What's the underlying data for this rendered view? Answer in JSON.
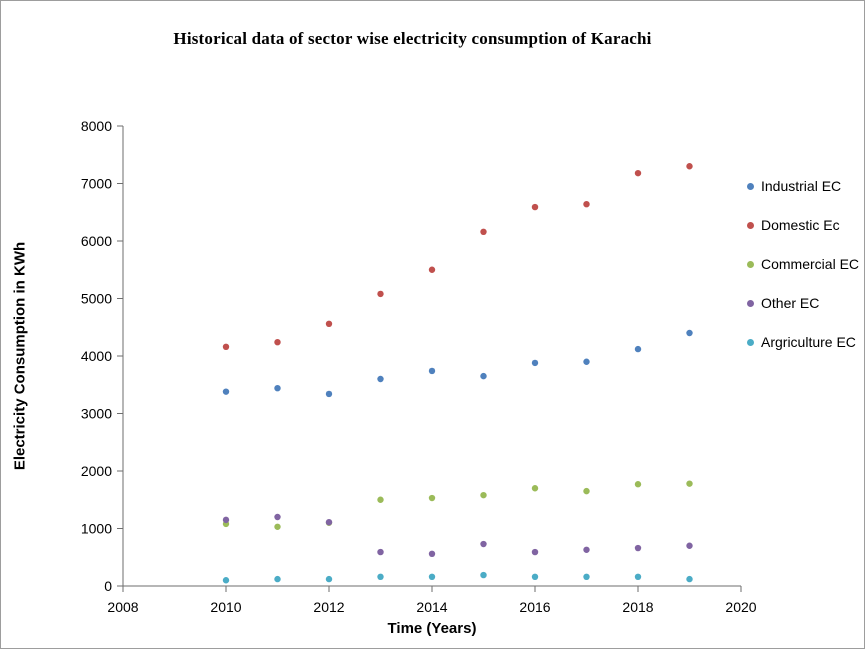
{
  "chart_data": {
    "type": "scatter",
    "title": "Historical data of sector wise electricity consumption of Karachi",
    "xlabel": "Time (Years)",
    "ylabel": "Electricity Consumption in KWh",
    "x": [
      2010,
      2011,
      2012,
      2013,
      2014,
      2015,
      2016,
      2017,
      2018,
      2019
    ],
    "series": [
      {
        "name": "Industrial EC",
        "color": "#4F81BD",
        "values": [
          3380,
          3440,
          3340,
          3600,
          3740,
          3650,
          3880,
          3900,
          4120,
          4400
        ]
      },
      {
        "name": "Domestic Ec",
        "color": "#C0504D",
        "values": [
          4160,
          4240,
          4560,
          5080,
          5500,
          6160,
          6590,
          6640,
          7180,
          7300
        ]
      },
      {
        "name": "Commercial EC",
        "color": "#9BBB59",
        "values": [
          1080,
          1030,
          1100,
          1500,
          1530,
          1580,
          1700,
          1650,
          1770,
          1780
        ]
      },
      {
        "name": "Other EC",
        "color": "#8064A2",
        "values": [
          1150,
          1200,
          1110,
          590,
          560,
          730,
          590,
          630,
          660,
          700
        ]
      },
      {
        "name": "Argriculture EC",
        "color": "#4BACC6",
        "values": [
          100,
          120,
          120,
          160,
          160,
          190,
          160,
          160,
          160,
          120
        ]
      }
    ],
    "xlim": [
      2008,
      2020
    ],
    "ylim": [
      0,
      8000
    ],
    "x_ticks": [
      2008,
      2010,
      2012,
      2014,
      2016,
      2018,
      2020
    ],
    "y_ticks": [
      0,
      1000,
      2000,
      3000,
      4000,
      5000,
      6000,
      7000,
      8000
    ],
    "grid": false,
    "legend_position": "right",
    "axis_color": "#6e6e6e",
    "marker_radius": 3.2
  }
}
